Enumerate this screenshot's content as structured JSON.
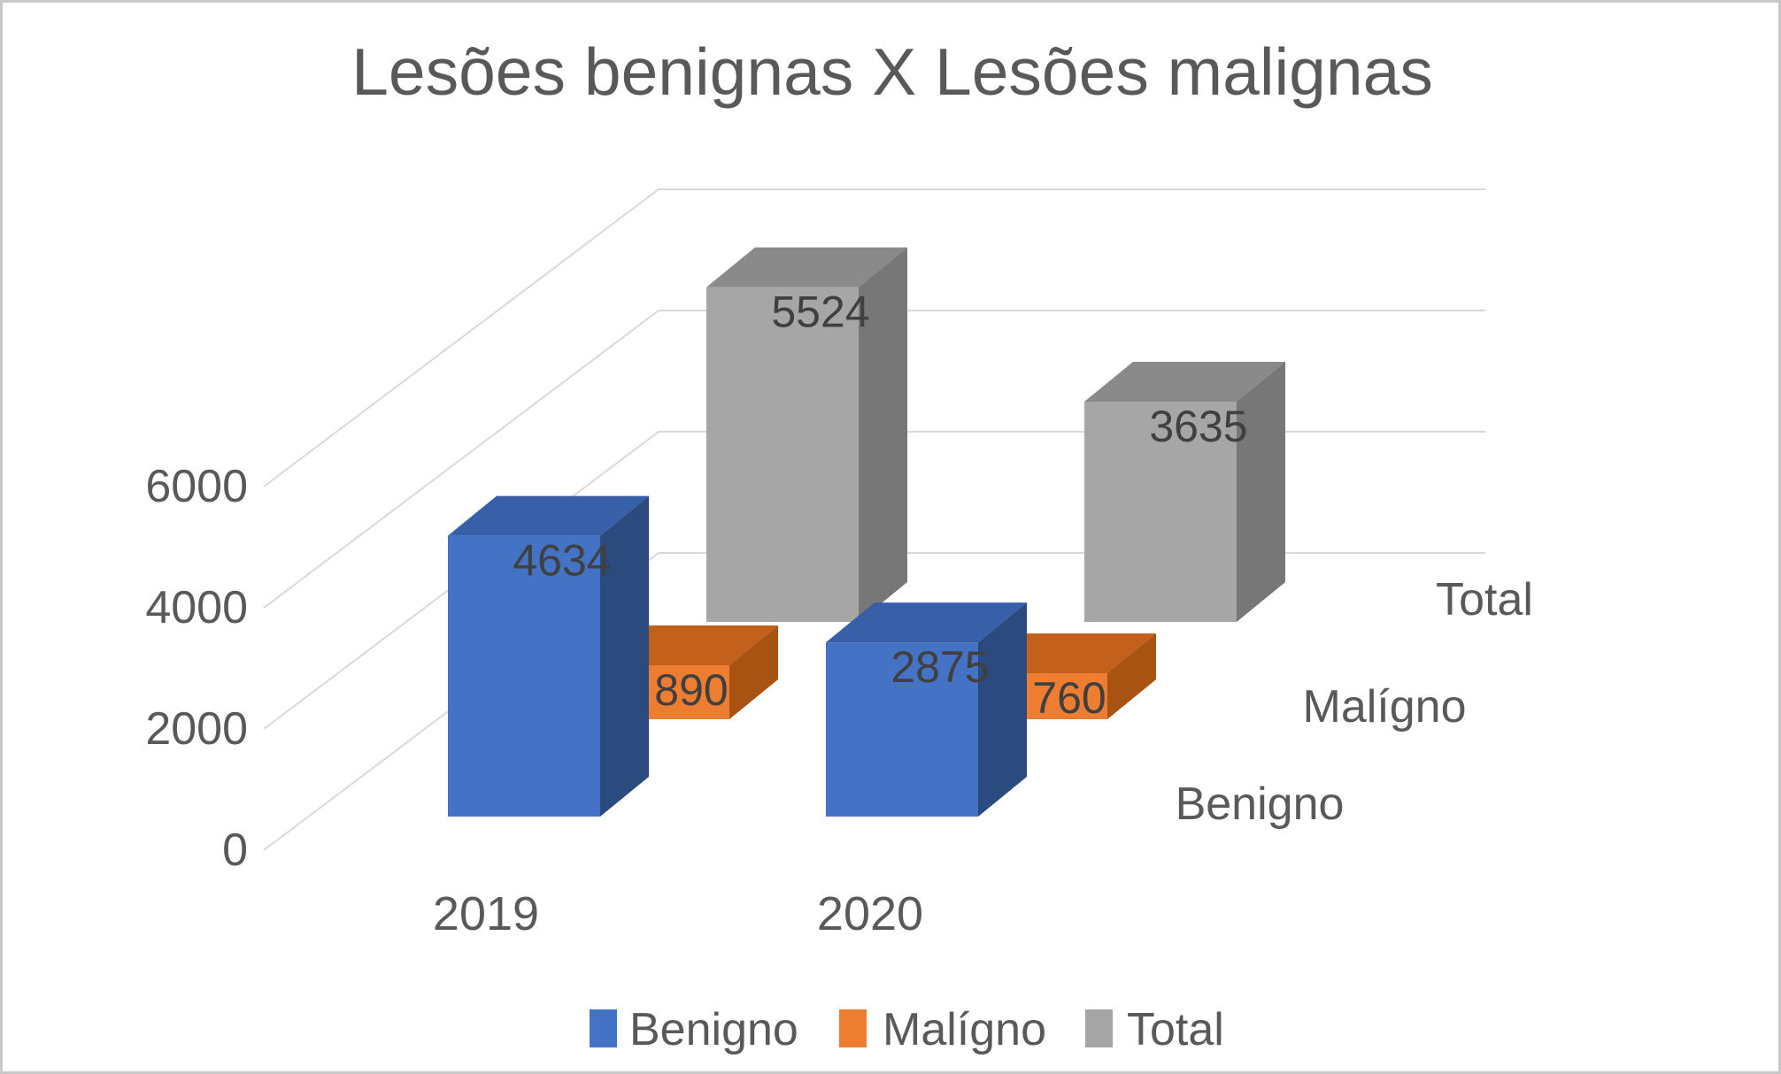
{
  "title": "Lesões benignas X Lesões malignas",
  "colors": {
    "background": "#FFFFFF",
    "frame_border": "#C9C9C9",
    "title_text": "#595959",
    "axis_text": "#595959",
    "value_label_text": "#404040",
    "gridline": "#D9D9D9"
  },
  "chart_data": {
    "type": "bar",
    "projection": "3d",
    "title": "Lesões benignas X Lesões malignas",
    "categories": [
      "2019",
      "2020"
    ],
    "series": [
      {
        "name": "Benigno",
        "values": [
          4634,
          2875
        ],
        "color": "#4472C4",
        "color_top": "#3760A8",
        "color_side": "#2B4A7E"
      },
      {
        "name": "Malígno",
        "values": [
          890,
          760
        ],
        "color": "#ED7D31",
        "color_top": "#C2601C",
        "color_side": "#A85311"
      },
      {
        "name": "Total",
        "values": [
          5524,
          3635
        ],
        "color": "#A6A6A6",
        "color_top": "#8A8A8A",
        "color_side": "#777777"
      }
    ],
    "yaxis": {
      "min": 0,
      "max": 6000,
      "ticks": [
        0,
        2000,
        4000,
        6000
      ]
    },
    "depth_labels": [
      "Benigno",
      "Malígno",
      "Total"
    ],
    "legend": {
      "position": "bottom",
      "items": [
        "Benigno",
        "Malígno",
        "Total"
      ]
    },
    "gridlines": true
  }
}
